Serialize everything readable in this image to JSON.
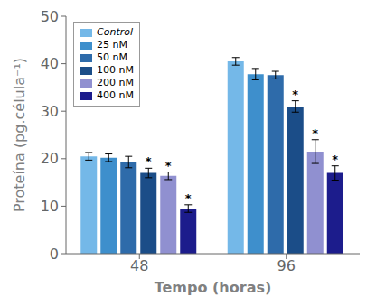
{
  "chart_data": {
    "type": "bar",
    "xlabel": "Tempo (horas)",
    "ylabel": "Proteína (pg.célula⁻¹)",
    "categories": [
      "48",
      "96"
    ],
    "series": [
      {
        "name": "Control",
        "color": "#74B8E8",
        "values": [
          20.5,
          40.5
        ],
        "errors": [
          0.8,
          0.8
        ]
      },
      {
        "name": "25 nM",
        "color": "#3E8FCC",
        "values": [
          20.2,
          37.8
        ],
        "errors": [
          0.8,
          1.2
        ]
      },
      {
        "name": "50 nM",
        "color": "#2E6BAA",
        "values": [
          19.3,
          37.6
        ],
        "errors": [
          1.2,
          0.8
        ]
      },
      {
        "name": "100 nM",
        "color": "#1B4D88",
        "values": [
          17.0,
          31.0
        ],
        "errors": [
          1.0,
          1.2
        ]
      },
      {
        "name": "200 nM",
        "color": "#9090D0",
        "values": [
          16.4,
          21.5
        ],
        "errors": [
          0.8,
          2.5
        ]
      },
      {
        "name": "400 nM",
        "color": "#1C1C8C",
        "values": [
          9.5,
          17.0
        ],
        "errors": [
          0.8,
          1.5
        ]
      }
    ],
    "annotations": [
      {
        "text": "*",
        "category": "48",
        "series": "100 nM"
      },
      {
        "text": "*",
        "category": "48",
        "series": "200 nM"
      },
      {
        "text": "*",
        "category": "48",
        "series": "400 nM"
      },
      {
        "text": "*",
        "category": "96",
        "series": "100 nM"
      },
      {
        "text": "*",
        "category": "96",
        "series": "200 nM"
      },
      {
        "text": "*",
        "category": "96",
        "series": "400 nM"
      }
    ],
    "ylim": [
      0,
      50
    ],
    "yticks": [
      0,
      10,
      20,
      30,
      40,
      50
    ],
    "grid": false,
    "legend": "upper left"
  }
}
